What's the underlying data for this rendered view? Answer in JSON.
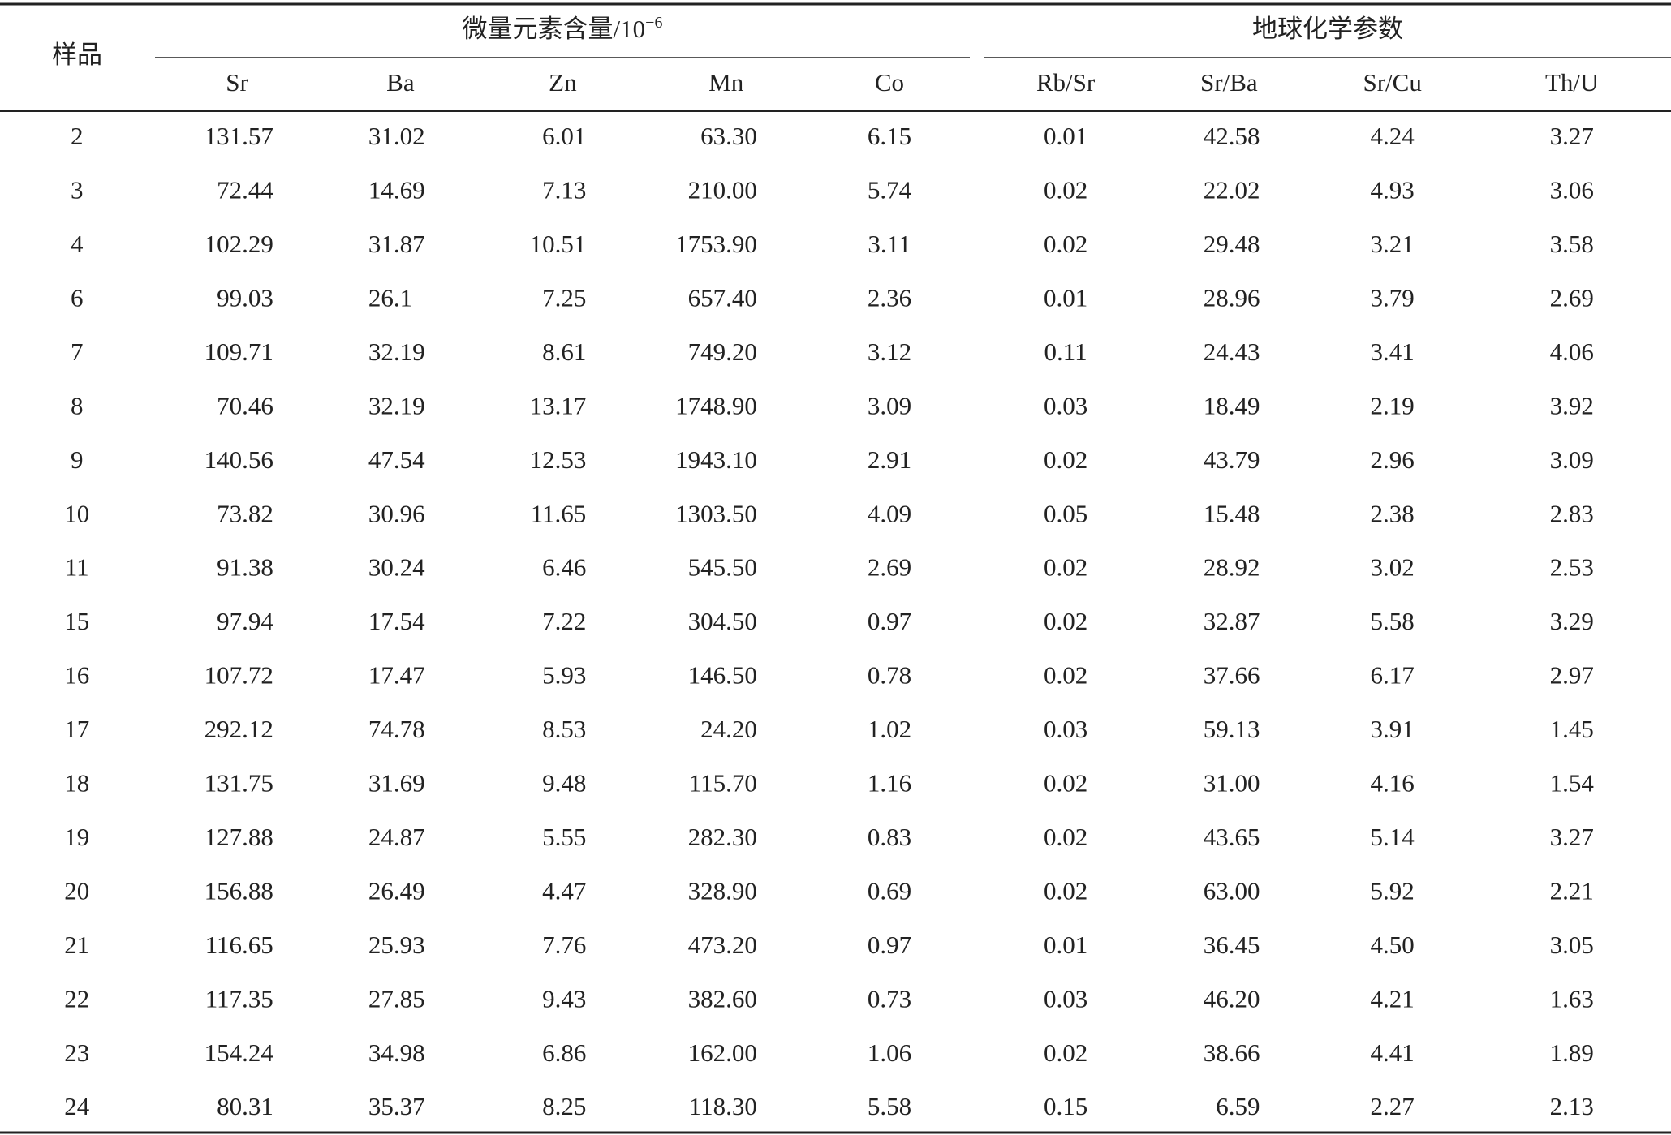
{
  "table": {
    "corner": "样品",
    "groups": [
      {
        "title": "微量元素含量/10",
        "superscript": "−6"
      },
      {
        "title": "地球化学参数"
      }
    ],
    "columns": [
      "Sr",
      "Ba",
      "Zn",
      "Mn",
      "Co",
      "Rb/Sr",
      "Sr/Ba",
      "Sr/Cu",
      "Th/U"
    ],
    "rows": [
      [
        "2",
        "131.57",
        "31.02",
        "6.01",
        "63.30",
        "6.15",
        "0.01",
        "42.58",
        "4.24",
        "3.27"
      ],
      [
        "3",
        "72.44",
        "14.69",
        "7.13",
        "210.00",
        "5.74",
        "0.02",
        "22.02",
        "4.93",
        "3.06"
      ],
      [
        "4",
        "102.29",
        "31.87",
        "10.51",
        "1753.90",
        "3.11",
        "0.02",
        "29.48",
        "3.21",
        "3.58"
      ],
      [
        "6",
        "99.03",
        "26.1",
        "7.25",
        "657.40",
        "2.36",
        "0.01",
        "28.96",
        "3.79",
        "2.69"
      ],
      [
        "7",
        "109.71",
        "32.19",
        "8.61",
        "749.20",
        "3.12",
        "0.11",
        "24.43",
        "3.41",
        "4.06"
      ],
      [
        "8",
        "70.46",
        "32.19",
        "13.17",
        "1748.90",
        "3.09",
        "0.03",
        "18.49",
        "2.19",
        "3.92"
      ],
      [
        "9",
        "140.56",
        "47.54",
        "12.53",
        "1943.10",
        "2.91",
        "0.02",
        "43.79",
        "2.96",
        "3.09"
      ],
      [
        "10",
        "73.82",
        "30.96",
        "11.65",
        "1303.50",
        "4.09",
        "0.05",
        "15.48",
        "2.38",
        "2.83"
      ],
      [
        "11",
        "91.38",
        "30.24",
        "6.46",
        "545.50",
        "2.69",
        "0.02",
        "28.92",
        "3.02",
        "2.53"
      ],
      [
        "15",
        "97.94",
        "17.54",
        "7.22",
        "304.50",
        "0.97",
        "0.02",
        "32.87",
        "5.58",
        "3.29"
      ],
      [
        "16",
        "107.72",
        "17.47",
        "5.93",
        "146.50",
        "0.78",
        "0.02",
        "37.66",
        "6.17",
        "2.97"
      ],
      [
        "17",
        "292.12",
        "74.78",
        "8.53",
        "24.20",
        "1.02",
        "0.03",
        "59.13",
        "3.91",
        "1.45"
      ],
      [
        "18",
        "131.75",
        "31.69",
        "9.48",
        "115.70",
        "1.16",
        "0.02",
        "31.00",
        "4.16",
        "1.54"
      ],
      [
        "19",
        "127.88",
        "24.87",
        "5.55",
        "282.30",
        "0.83",
        "0.02",
        "43.65",
        "5.14",
        "3.27"
      ],
      [
        "20",
        "156.88",
        "26.49",
        "4.47",
        "328.90",
        "0.69",
        "0.02",
        "63.00",
        "5.92",
        "2.21"
      ],
      [
        "21",
        "116.65",
        "25.93",
        "7.76",
        "473.20",
        "0.97",
        "0.01",
        "36.45",
        "4.50",
        "3.05"
      ],
      [
        "22",
        "117.35",
        "27.85",
        "9.43",
        "382.60",
        "0.73",
        "0.03",
        "46.20",
        "4.21",
        "1.63"
      ],
      [
        "23",
        "154.24",
        "34.98",
        "6.86",
        "162.00",
        "1.06",
        "0.02",
        "38.66",
        "4.41",
        "1.89"
      ],
      [
        "24",
        "80.31",
        "35.37",
        "8.25",
        "118.30",
        "5.58",
        "0.15",
        "6.59",
        "2.27",
        "2.13"
      ]
    ]
  }
}
